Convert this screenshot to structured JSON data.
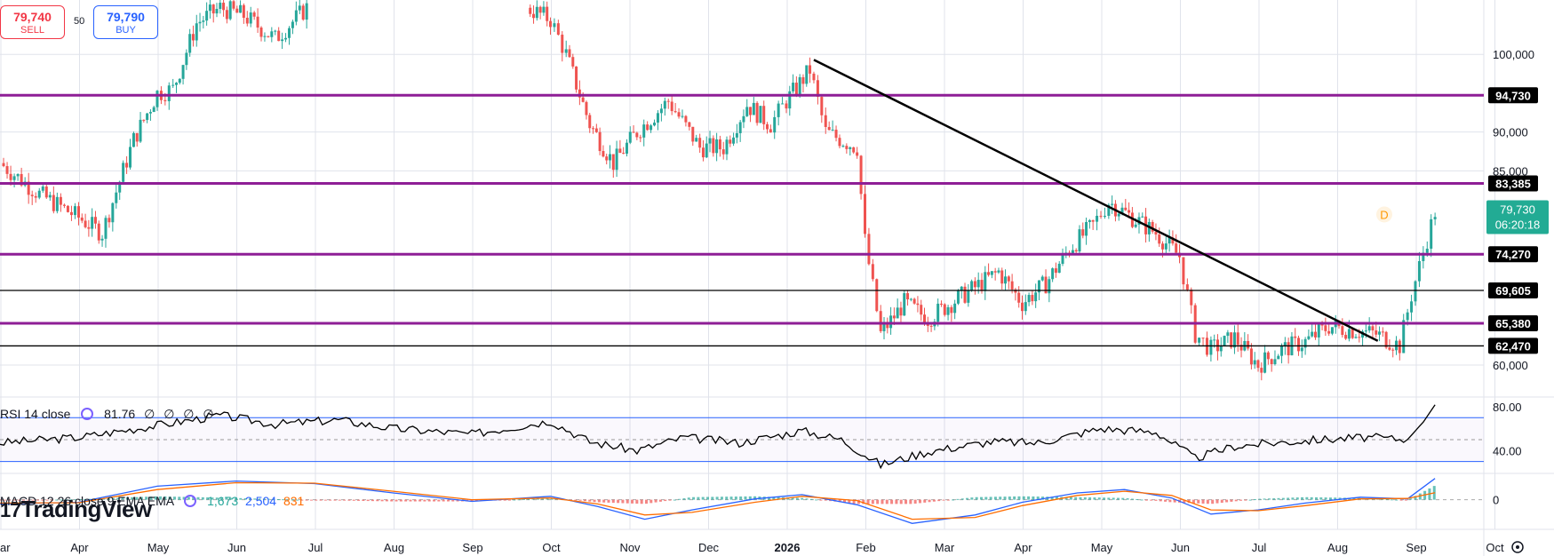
{
  "order_panel": {
    "sell_price": "79,740",
    "sell_label": "SELL",
    "buy_price": "79,790",
    "buy_label": "BUY",
    "spread": "50"
  },
  "logo": {
    "text": "TradingView"
  },
  "colors": {
    "up": "#26a69a",
    "down": "#ef5350",
    "level": "#8e1e96",
    "trend": "#000000",
    "rsi_band": "#2962ff",
    "macd": "#2962ff",
    "signal": "#ff6d00",
    "last_price_bg": "#22ab94"
  },
  "chart_data": [
    {
      "type": "candlestick",
      "x_axis": {
        "labels": [
          "ar",
          "Apr",
          "May",
          "Jun",
          "Jul",
          "Aug",
          "Sep",
          "Oct",
          "Nov",
          "Dec",
          "2026",
          "Feb",
          "Mar",
          "Apr",
          "May",
          "Jun",
          "Jul",
          "Aug",
          "Sep",
          "Oct"
        ]
      },
      "y_axis": {
        "ticks": [
          60000,
          85000,
          90000,
          100000
        ],
        "tick_labels": [
          "60,000",
          "85,000",
          "90,000",
          "100,000"
        ],
        "range": [
          56000,
          107000
        ]
      },
      "horizontal_levels": [
        {
          "value": 94730,
          "label": "94,730",
          "style": "purple"
        },
        {
          "value": 83385,
          "label": "83,385",
          "style": "purple"
        },
        {
          "value": 74270,
          "label": "74,270",
          "style": "purple"
        },
        {
          "value": 69605,
          "label": "69,605",
          "style": "black"
        },
        {
          "value": 65380,
          "label": "65,380",
          "style": "purple"
        },
        {
          "value": 62470,
          "label": "62,470",
          "style": "black"
        }
      ],
      "trendline": {
        "from": {
          "month": 10.35,
          "value": 99300
        },
        "to": {
          "month": 18.2,
          "value": 63800
        }
      },
      "last_price": {
        "value": 79730,
        "label": "79,730",
        "countdown": "06:20:18"
      },
      "marker": "D",
      "series": [
        {
          "month": 0.0,
          "close": 86000
        },
        {
          "month": 0.5,
          "close": 82000
        },
        {
          "month": 1.0,
          "close": 79000
        },
        {
          "month": 1.3,
          "close": 77000
        },
        {
          "month": 1.7,
          "close": 89000
        },
        {
          "month": 2.0,
          "close": 95000
        },
        {
          "month": 2.2,
          "close": 95500
        },
        {
          "month": 2.5,
          "close": 104000
        },
        {
          "month": 2.8,
          "close": 106000
        },
        {
          "month": 3.1,
          "close": 105000
        },
        {
          "month": 3.5,
          "close": 102000
        },
        {
          "month": 3.9,
          "close": 106000
        },
        {
          "month": 6.7,
          "close": 106000
        },
        {
          "month": 7.0,
          "close": 104500
        },
        {
          "month": 7.2,
          "close": 100000
        },
        {
          "month": 7.5,
          "close": 91000
        },
        {
          "month": 7.8,
          "close": 86000
        },
        {
          "month": 8.1,
          "close": 90000
        },
        {
          "month": 8.5,
          "close": 94000
        },
        {
          "month": 8.9,
          "close": 88000
        },
        {
          "month": 9.2,
          "close": 88000
        },
        {
          "month": 9.5,
          "close": 93500
        },
        {
          "month": 9.8,
          "close": 91000
        },
        {
          "month": 10.0,
          "close": 94000
        },
        {
          "month": 10.3,
          "close": 98000
        },
        {
          "month": 10.5,
          "close": 90000
        },
        {
          "month": 10.9,
          "close": 88000
        },
        {
          "month": 11.0,
          "close": 76000
        },
        {
          "month": 11.2,
          "close": 64000
        },
        {
          "month": 11.5,
          "close": 68000
        },
        {
          "month": 11.8,
          "close": 66000
        },
        {
          "month": 12.1,
          "close": 68000
        },
        {
          "month": 12.4,
          "close": 70000
        },
        {
          "month": 12.7,
          "close": 72000
        },
        {
          "month": 13.0,
          "close": 68000
        },
        {
          "month": 13.3,
          "close": 70500
        },
        {
          "month": 13.6,
          "close": 75000
        },
        {
          "month": 13.9,
          "close": 78000
        },
        {
          "month": 14.1,
          "close": 81000
        },
        {
          "month": 14.4,
          "close": 79000
        },
        {
          "month": 14.7,
          "close": 77000
        },
        {
          "month": 15.0,
          "close": 74000
        },
        {
          "month": 15.2,
          "close": 64000
        },
        {
          "month": 15.4,
          "close": 62000
        },
        {
          "month": 15.7,
          "close": 63500
        },
        {
          "month": 16.0,
          "close": 60000
        },
        {
          "month": 16.3,
          "close": 62000
        },
        {
          "month": 16.6,
          "close": 63000
        },
        {
          "month": 16.9,
          "close": 65000
        },
        {
          "month": 17.2,
          "close": 64500
        },
        {
          "month": 17.5,
          "close": 64000
        },
        {
          "month": 17.8,
          "close": 62500
        },
        {
          "month": 17.95,
          "close": 69000
        },
        {
          "month": 18.1,
          "close": 74500
        },
        {
          "month": 18.25,
          "close": 79730
        }
      ]
    },
    {
      "type": "line",
      "title": "RSI 14 close",
      "value_label": "81.76",
      "na_labels": [
        "∅",
        "∅",
        "∅",
        "∅"
      ],
      "y_axis": {
        "ticks": [
          40,
          80
        ],
        "tick_labels": [
          "40.00",
          "80.00"
        ],
        "band": [
          30,
          70
        ],
        "mid": 50,
        "range": [
          20,
          88
        ]
      },
      "series": [
        {
          "month": 0.0,
          "value": 47
        },
        {
          "month": 1.0,
          "value": 52
        },
        {
          "month": 2.0,
          "value": 63
        },
        {
          "month": 2.8,
          "value": 72
        },
        {
          "month": 3.5,
          "value": 64
        },
        {
          "month": 4.3,
          "value": 68
        },
        {
          "month": 5.0,
          "value": 60
        },
        {
          "month": 6.0,
          "value": 55
        },
        {
          "month": 7.0,
          "value": 67
        },
        {
          "month": 7.5,
          "value": 48
        },
        {
          "month": 8.1,
          "value": 40
        },
        {
          "month": 8.7,
          "value": 52
        },
        {
          "month": 9.4,
          "value": 47
        },
        {
          "month": 10.2,
          "value": 58
        },
        {
          "month": 10.7,
          "value": 50
        },
        {
          "month": 11.2,
          "value": 27
        },
        {
          "month": 11.8,
          "value": 39
        },
        {
          "month": 12.6,
          "value": 48
        },
        {
          "month": 13.2,
          "value": 47
        },
        {
          "month": 14.0,
          "value": 60
        },
        {
          "month": 14.7,
          "value": 57
        },
        {
          "month": 15.2,
          "value": 33
        },
        {
          "month": 15.7,
          "value": 44
        },
        {
          "month": 16.2,
          "value": 47
        },
        {
          "month": 16.8,
          "value": 50
        },
        {
          "month": 17.4,
          "value": 52
        },
        {
          "month": 17.9,
          "value": 50
        },
        {
          "month": 18.1,
          "value": 66
        },
        {
          "month": 18.25,
          "value": 81.76
        }
      ]
    },
    {
      "type": "line+histogram",
      "title": "MACD 12 26 close 9 EMA EMA",
      "values": {
        "histogram": "1,673",
        "macd": "2,504",
        "signal": "831"
      },
      "y_axis": {
        "ticks": [
          0
        ],
        "tick_labels": [
          "0"
        ],
        "range": [
          -3500,
          3000
        ]
      },
      "series": [
        {
          "name": "MACD",
          "points": [
            [
              0,
              -500
            ],
            [
              1,
              -300
            ],
            [
              2,
              1600
            ],
            [
              3,
              2200
            ],
            [
              4,
              1900
            ],
            [
              5,
              800
            ],
            [
              6,
              -200
            ],
            [
              7,
              400
            ],
            [
              7.6,
              -800
            ],
            [
              8.2,
              -2300
            ],
            [
              8.8,
              -1200
            ],
            [
              9.6,
              100
            ],
            [
              10.2,
              600
            ],
            [
              10.9,
              -600
            ],
            [
              11.6,
              -2800
            ],
            [
              12.4,
              -1800
            ],
            [
              13.0,
              -300
            ],
            [
              13.7,
              800
            ],
            [
              14.3,
              1200
            ],
            [
              14.9,
              200
            ],
            [
              15.4,
              -1700
            ],
            [
              16.0,
              -1200
            ],
            [
              16.6,
              -400
            ],
            [
              17.3,
              300
            ],
            [
              17.9,
              100
            ],
            [
              18.25,
              2504
            ]
          ]
        },
        {
          "name": "Signal",
          "points": [
            [
              0,
              -400
            ],
            [
              1,
              -350
            ],
            [
              2,
              1200
            ],
            [
              3,
              2000
            ],
            [
              4,
              1950
            ],
            [
              5,
              1000
            ],
            [
              6,
              0
            ],
            [
              7,
              200
            ],
            [
              7.6,
              -500
            ],
            [
              8.2,
              -1800
            ],
            [
              8.8,
              -1500
            ],
            [
              9.6,
              -300
            ],
            [
              10.2,
              400
            ],
            [
              10.9,
              -100
            ],
            [
              11.6,
              -2300
            ],
            [
              12.4,
              -2100
            ],
            [
              13.0,
              -700
            ],
            [
              13.7,
              500
            ],
            [
              14.3,
              1000
            ],
            [
              14.9,
              500
            ],
            [
              15.4,
              -1200
            ],
            [
              16.0,
              -1300
            ],
            [
              16.6,
              -700
            ],
            [
              17.3,
              100
            ],
            [
              17.9,
              150
            ],
            [
              18.25,
              831
            ]
          ]
        }
      ]
    }
  ],
  "axis_icons": {
    "settings": "settings-icon",
    "rsi_toggle": "cycle-icon",
    "macd_toggle": "cycle-icon"
  }
}
